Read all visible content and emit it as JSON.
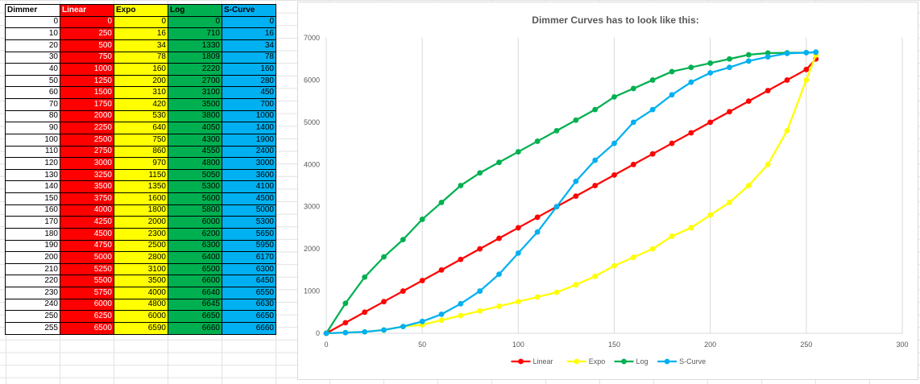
{
  "table": {
    "headers": [
      "Dimmer",
      "Linear",
      "Expo",
      "Log",
      "S-Curve"
    ],
    "rows": [
      [
        0,
        0,
        0,
        0,
        0
      ],
      [
        10,
        250,
        16,
        710,
        16
      ],
      [
        20,
        500,
        34,
        1330,
        34
      ],
      [
        30,
        750,
        78,
        1809,
        78
      ],
      [
        40,
        1000,
        160,
        2220,
        160
      ],
      [
        50,
        1250,
        200,
        2700,
        280
      ],
      [
        60,
        1500,
        310,
        3100,
        450
      ],
      [
        70,
        1750,
        420,
        3500,
        700
      ],
      [
        80,
        2000,
        530,
        3800,
        1000
      ],
      [
        90,
        2250,
        640,
        4050,
        1400
      ],
      [
        100,
        2500,
        750,
        4300,
        1900
      ],
      [
        110,
        2750,
        860,
        4550,
        2400
      ],
      [
        120,
        3000,
        970,
        4800,
        3000
      ],
      [
        130,
        3250,
        1150,
        5050,
        3600
      ],
      [
        140,
        3500,
        1350,
        5300,
        4100
      ],
      [
        150,
        3750,
        1600,
        5600,
        4500
      ],
      [
        160,
        4000,
        1800,
        5800,
        5000
      ],
      [
        170,
        4250,
        2000,
        6000,
        5300
      ],
      [
        180,
        4500,
        2300,
        6200,
        5650
      ],
      [
        190,
        4750,
        2500,
        6300,
        5950
      ],
      [
        200,
        5000,
        2800,
        6400,
        6170
      ],
      [
        210,
        5250,
        3100,
        6500,
        6300
      ],
      [
        220,
        5500,
        3500,
        6600,
        6450
      ],
      [
        230,
        5750,
        4000,
        6640,
        6550
      ],
      [
        240,
        6000,
        4800,
        6645,
        6630
      ],
      [
        250,
        6250,
        6000,
        6650,
        6650
      ],
      [
        255,
        6500,
        6590,
        6660,
        6660
      ]
    ]
  },
  "colors": {
    "linear": "#ff0000",
    "expo": "#ffff00",
    "log": "#00b050",
    "scurve": "#00b0f0",
    "gridline": "#d9d9d9",
    "axis_text": "#595959"
  },
  "chart_data": {
    "type": "scatter",
    "title": "Dimmer Curves has to look like this:",
    "xlabel": "",
    "ylabel": "",
    "xlim": [
      0,
      300
    ],
    "ylim": [
      0,
      7000
    ],
    "x_ticks": [
      0,
      50,
      100,
      150,
      200,
      250,
      300
    ],
    "y_ticks": [
      0,
      1000,
      2000,
      3000,
      4000,
      5000,
      6000,
      7000
    ],
    "grid": "vertical",
    "legend_position": "bottom",
    "x": [
      0,
      10,
      20,
      30,
      40,
      50,
      60,
      70,
      80,
      90,
      100,
      110,
      120,
      130,
      140,
      150,
      160,
      170,
      180,
      190,
      200,
      210,
      220,
      230,
      240,
      250,
      255
    ],
    "series": [
      {
        "name": "Linear",
        "color": "#ff0000",
        "values": [
          0,
          250,
          500,
          750,
          1000,
          1250,
          1500,
          1750,
          2000,
          2250,
          2500,
          2750,
          3000,
          3250,
          3500,
          3750,
          4000,
          4250,
          4500,
          4750,
          5000,
          5250,
          5500,
          5750,
          6000,
          6250,
          6500
        ]
      },
      {
        "name": "Expo",
        "color": "#ffff00",
        "values": [
          0,
          16,
          34,
          78,
          160,
          200,
          310,
          420,
          530,
          640,
          750,
          860,
          970,
          1150,
          1350,
          1600,
          1800,
          2000,
          2300,
          2500,
          2800,
          3100,
          3500,
          4000,
          4800,
          6000,
          6590
        ]
      },
      {
        "name": "Log",
        "color": "#00b050",
        "values": [
          0,
          710,
          1330,
          1809,
          2220,
          2700,
          3100,
          3500,
          3800,
          4050,
          4300,
          4550,
          4800,
          5050,
          5300,
          5600,
          5800,
          6000,
          6200,
          6300,
          6400,
          6500,
          6600,
          6640,
          6645,
          6650,
          6660
        ]
      },
      {
        "name": "S-Curve",
        "color": "#00b0f0",
        "values": [
          0,
          16,
          34,
          78,
          160,
          280,
          450,
          700,
          1000,
          1400,
          1900,
          2400,
          3000,
          3600,
          4100,
          4500,
          5000,
          5300,
          5650,
          5950,
          6170,
          6300,
          6450,
          6550,
          6630,
          6650,
          6660
        ]
      }
    ]
  }
}
